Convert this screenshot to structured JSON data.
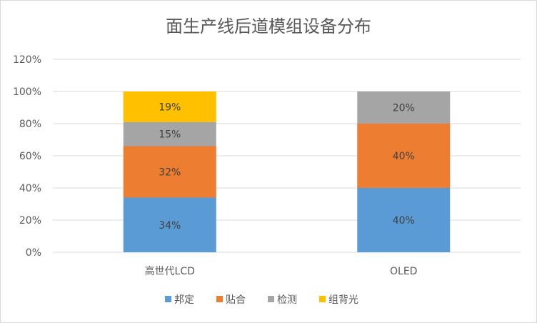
{
  "chart_data": {
    "type": "bar",
    "stacked": true,
    "percent": true,
    "title": "面生产线后道模组设备分布",
    "categories": [
      "高世代LCD",
      "OLED"
    ],
    "series": [
      {
        "name": "邦定",
        "values": [
          34,
          40
        ],
        "labels": [
          "34%",
          "40%"
        ],
        "color": "#5b9bd5"
      },
      {
        "name": "贴合",
        "values": [
          32,
          40
        ],
        "labels": [
          "32%",
          "40%"
        ],
        "color": "#ed7d31"
      },
      {
        "name": "检测",
        "values": [
          15,
          20
        ],
        "labels": [
          "15%",
          "20%"
        ],
        "color": "#a5a5a5"
      },
      {
        "name": "组背光",
        "values": [
          19,
          0
        ],
        "labels": [
          "19%",
          ""
        ],
        "color": "#ffc000"
      }
    ],
    "ylim": [
      0,
      120
    ],
    "yticks": [
      0,
      20,
      40,
      60,
      80,
      100,
      120
    ],
    "ytick_labels": [
      "0%",
      "20%",
      "40%",
      "60%",
      "80%",
      "100%",
      "120%"
    ],
    "grid": true,
    "legend_position": "bottom",
    "gridline_color": "#d9d9d9"
  }
}
